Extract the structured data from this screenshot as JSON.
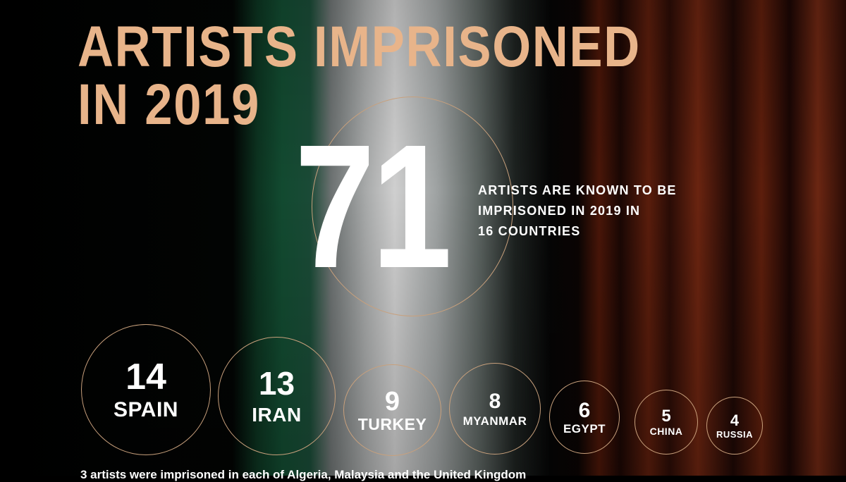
{
  "title": {
    "line1": "ARTISTS IMPRISONED",
    "line2": "IN 2019"
  },
  "headline": {
    "total": "71",
    "description": [
      "ARTISTS ARE KNOWN TO BE",
      "IMPRISONED IN 2019 IN",
      "16 COUNTRIES"
    ]
  },
  "countries": [
    {
      "count": "14",
      "name": "SPAIN"
    },
    {
      "count": "13",
      "name": "IRAN"
    },
    {
      "count": "9",
      "name": "TURKEY"
    },
    {
      "count": "8",
      "name": "MYANMAR"
    },
    {
      "count": "6",
      "name": "EGYPT"
    },
    {
      "count": "5",
      "name": "CHINA"
    },
    {
      "count": "4",
      "name": "RUSSIA"
    }
  ],
  "footnote": "3 artists were imprisoned in each of Algeria, Malaysia and the United Kingdom",
  "colors": {
    "accent": "#e8b48a",
    "ring": "#c8a07c",
    "text": "#ffffff"
  }
}
